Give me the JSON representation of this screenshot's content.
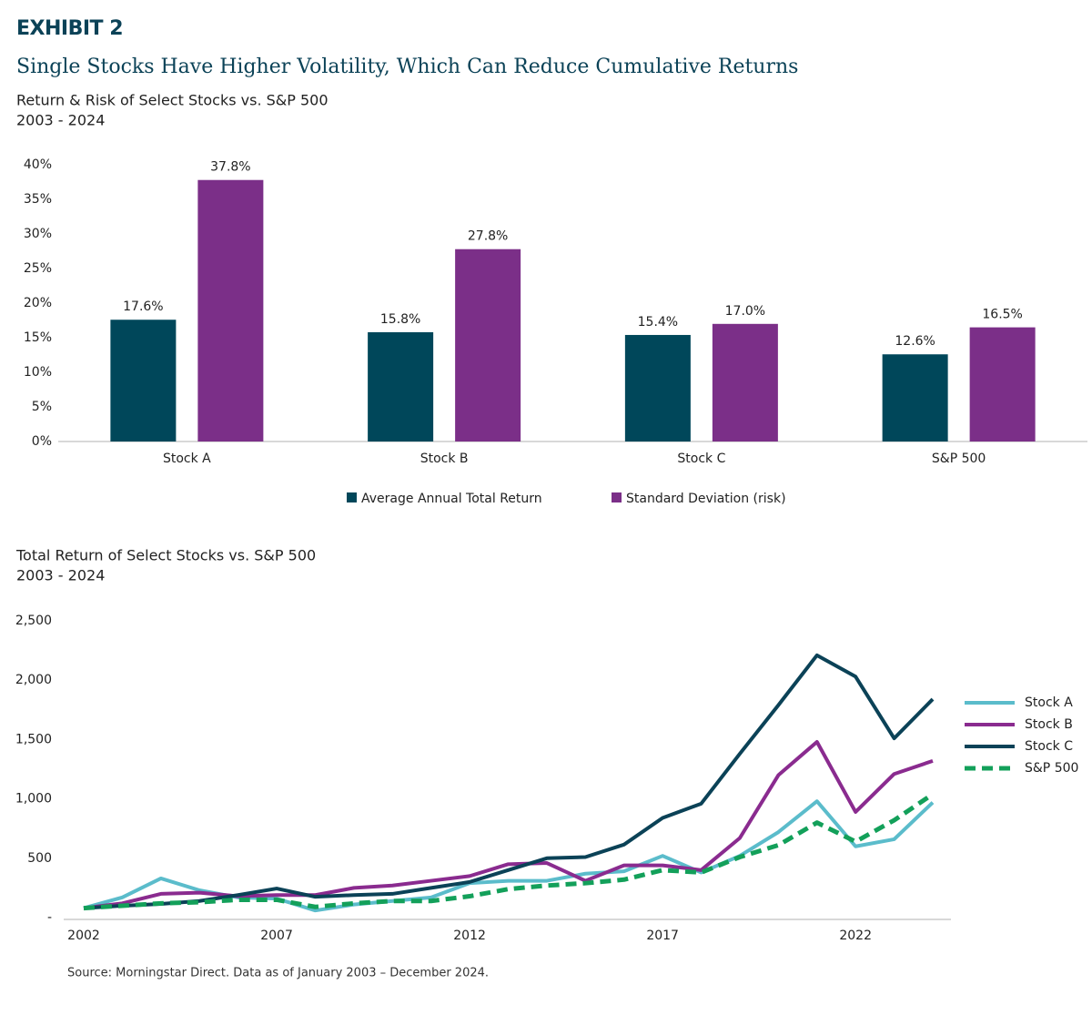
{
  "header": {
    "exhibit": "EXHIBIT 2",
    "title": "Single Stocks Have Higher Volatility, Which Can Reduce Cumulative Returns"
  },
  "chart_data": [
    {
      "type": "bar",
      "title": "Return & Risk of Select Stocks vs. S&P 500",
      "subtitle": "2003 - 2024",
      "categories": [
        "Stock A",
        "Stock B",
        "Stock C",
        "S&P 500"
      ],
      "series": [
        {
          "name": "Average Annual Total Return",
          "color": "#00475a",
          "values": [
            17.6,
            15.8,
            15.4,
            12.6
          ],
          "value_labels": [
            "17.6%",
            "15.8%",
            "15.4%",
            "12.6%"
          ]
        },
        {
          "name": "Standard Deviation (risk)",
          "color": "#7b2f88",
          "values": [
            37.8,
            27.8,
            17.0,
            16.5
          ],
          "value_labels": [
            "37.8%",
            "27.8%",
            "17.0%",
            "16.5%"
          ]
        }
      ],
      "ylim": [
        0,
        40
      ],
      "yticks": [
        {
          "value": 0,
          "label": "0%"
        },
        {
          "value": 5,
          "label": "5%"
        },
        {
          "value": 10,
          "label": "10%"
        },
        {
          "value": 15,
          "label": "15%"
        },
        {
          "value": 20,
          "label": "20%"
        },
        {
          "value": 25,
          "label": "25%"
        },
        {
          "value": 30,
          "label": "30%"
        },
        {
          "value": 35,
          "label": "35%"
        },
        {
          "value": 40,
          "label": "40%"
        }
      ],
      "legend": "bottom"
    },
    {
      "type": "line",
      "title": "Total Return of Select Stocks vs. S&P 500",
      "subtitle": "2003 - 2024",
      "x": [
        2002,
        2003,
        2004,
        2005,
        2006,
        2007,
        2008,
        2009,
        2010,
        2011,
        2012,
        2013,
        2014,
        2015,
        2016,
        2017,
        2018,
        2019,
        2020,
        2021,
        2022,
        2023,
        2024
      ],
      "series": [
        {
          "name": "Stock A",
          "color": "#5bbccb",
          "values": [
            80,
            170,
            330,
            230,
            170,
            160,
            60,
            110,
            140,
            170,
            290,
            310,
            310,
            370,
            390,
            520,
            380,
            520,
            720,
            980,
            600,
            660,
            970
          ]
        },
        {
          "name": "Stock B",
          "color": "#8a2b8f",
          "values": [
            80,
            120,
            200,
            210,
            180,
            190,
            190,
            250,
            270,
            310,
            350,
            450,
            460,
            310,
            440,
            440,
            400,
            670,
            1200,
            1480,
            890,
            1210,
            1320
          ]
        },
        {
          "name": "Stock C",
          "color": "#0b4257",
          "values": [
            80,
            100,
            115,
            140,
            190,
            245,
            175,
            190,
            200,
            250,
            300,
            400,
            500,
            510,
            615,
            840,
            960,
            1380,
            1790,
            2210,
            2030,
            1510,
            1840
          ]
        },
        {
          "name": "S&P 500",
          "color": "#13a05a",
          "dashed": true,
          "values": [
            80,
            100,
            120,
            130,
            150,
            150,
            90,
            120,
            140,
            140,
            180,
            240,
            270,
            290,
            320,
            400,
            380,
            510,
            610,
            800,
            640,
            820,
            1040
          ]
        }
      ],
      "xlim": [
        2002,
        2024
      ],
      "xticks": [
        2002,
        2007,
        2012,
        2017,
        2022
      ],
      "ylim": [
        0,
        2500
      ],
      "yticks": [
        {
          "value": 0,
          "label": "-"
        },
        500,
        {
          "value": 1000,
          "label": "1,000"
        },
        {
          "value": 1500,
          "label": "1,500"
        },
        {
          "value": 2000,
          "label": "2,000"
        },
        {
          "value": 2500,
          "label": "2,500"
        }
      ],
      "legend": "right"
    }
  ],
  "source": "Source: Morningstar Direct. Data as of January 2003 – December 2024."
}
